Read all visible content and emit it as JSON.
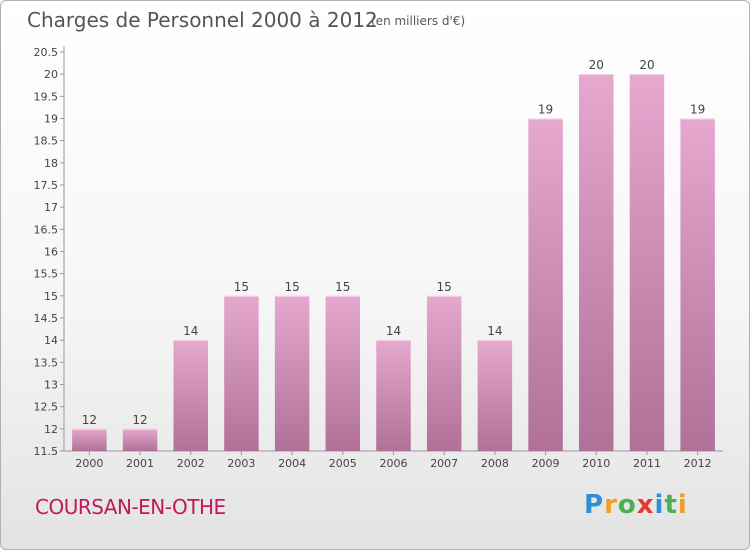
{
  "header": {
    "title": "Charges de Personnel 2000 à 2012",
    "subtitle": "(en milliers d'€)"
  },
  "footer": {
    "commune": "COURSAN-EN-OTHE",
    "logo_letters": [
      {
        "char": "P",
        "color": "#2e8fd6"
      },
      {
        "char": "r",
        "color": "#f0a020"
      },
      {
        "char": "o",
        "color": "#4caf50"
      },
      {
        "char": "x",
        "color": "#e53935"
      },
      {
        "char": "i",
        "color": "#2e8fd6"
      },
      {
        "char": "t",
        "color": "#4caf50"
      },
      {
        "char": "i",
        "color": "#f0a020"
      }
    ]
  },
  "colors": {
    "bar_light": "#e6a8cf",
    "bar_dark": "#b07098",
    "bar_top": "#f3cfe4",
    "axis": "#999999",
    "commune": "#c2185b"
  },
  "chart_data": {
    "type": "bar",
    "categories": [
      "2000",
      "2001",
      "2002",
      "2003",
      "2004",
      "2005",
      "2006",
      "2007",
      "2008",
      "2009",
      "2010",
      "2011",
      "2012"
    ],
    "values": [
      12,
      12,
      14,
      15,
      15,
      15,
      14,
      15,
      14,
      19,
      20,
      20,
      19
    ],
    "data_labels": [
      "12",
      "12",
      "14",
      "15",
      "15",
      "15",
      "14",
      "15",
      "14",
      "19",
      "20",
      "20",
      "19"
    ],
    "ylim": [
      11.5,
      20.5
    ],
    "yticks": [
      "11.5",
      "12",
      "12.5",
      "13",
      "13.5",
      "14",
      "14.5",
      "15",
      "15.5",
      "16",
      "16.5",
      "17",
      "17.5",
      "18",
      "18.5",
      "19",
      "19.5",
      "20",
      "20.5"
    ],
    "title": "Charges de Personnel 2000 à 2012",
    "xlabel": "",
    "ylabel": "",
    "grid": false,
    "legend": "none"
  }
}
